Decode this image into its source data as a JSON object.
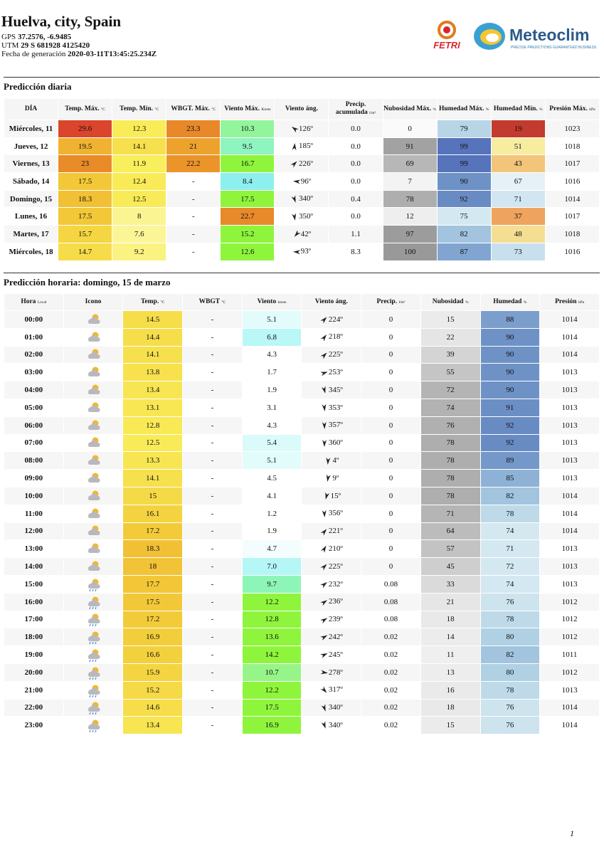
{
  "header": {
    "title": "Huelva, city, Spain",
    "gps_label": "GPS",
    "gps": "37.2576, -6.9485",
    "utm_label": "UTM",
    "utm": "29 S 681928 4125420",
    "date_label": "Fecha de generación",
    "date": "2020-03-11T13:45:25.234Z",
    "logo_left": "FETRI",
    "logo_right": "Meteoclim",
    "logo_tagline": "PRECISE PREDICTIONS GUARANTEED BUSINESS"
  },
  "daily": {
    "title": "Predicción diaria",
    "columns": [
      {
        "label": "DÍA"
      },
      {
        "label": "Temp. Máx.",
        "unit": "°C"
      },
      {
        "label": "Temp. Mín.",
        "unit": "°C"
      },
      {
        "label": "WBGT. Máx.",
        "unit": "°C"
      },
      {
        "label": "Viento Máx.",
        "unit": "Knots"
      },
      {
        "label": "Viento áng."
      },
      {
        "label": "Precip. acumulada",
        "unit": "l/m²"
      },
      {
        "label": "Nubosidad Máx.",
        "unit": "%"
      },
      {
        "label": "Humedad Máx.",
        "unit": "%"
      },
      {
        "label": "Humedad Mín.",
        "unit": "%"
      },
      {
        "label": "Presión Máx.",
        "unit": "hPa"
      }
    ],
    "rows": [
      [
        "Miércoles, 11",
        "29.6",
        "12.3",
        "23.3",
        "10.3",
        "126º",
        "0.0",
        "0",
        "79",
        "19",
        "1023"
      ],
      [
        "Jueves, 12",
        "19.5",
        "14.1",
        "21",
        "9.5",
        "185º",
        "0.0",
        "91",
        "99",
        "51",
        "1018"
      ],
      [
        "Viernes, 13",
        "23",
        "11.9",
        "22.2",
        "16.7",
        "226º",
        "0.0",
        "69",
        "99",
        "43",
        "1017"
      ],
      [
        "Sábado, 14",
        "17.5",
        "12.4",
        "-",
        "8.4",
        "96º",
        "0.0",
        "7",
        "90",
        "67",
        "1016"
      ],
      [
        "Domingo, 15",
        "18.3",
        "12.5",
        "-",
        "17.5",
        "340º",
        "0.4",
        "78",
        "92",
        "71",
        "1014"
      ],
      [
        "Lunes, 16",
        "17.5",
        "8",
        "-",
        "22.7",
        "350º",
        "0.0",
        "12",
        "75",
        "37",
        "1017"
      ],
      [
        "Martes, 17",
        "15.7",
        "7.6",
        "-",
        "15.2",
        "42º",
        "1.1",
        "97",
        "82",
        "48",
        "1018"
      ],
      [
        "Miércoles, 18",
        "14.7",
        "9.2",
        "-",
        "12.6",
        "93º",
        "8.3",
        "100",
        "87",
        "73",
        "1016"
      ]
    ]
  },
  "hourly": {
    "title": "Predicción horaria: domingo, 15 de marzo",
    "columns": [
      {
        "label": "Hora",
        "unit": "Local"
      },
      {
        "label": "Icono"
      },
      {
        "label": "Temp.",
        "unit": "°C"
      },
      {
        "label": "WBGT",
        "unit": "°C"
      },
      {
        "label": "Viento",
        "unit": "knots"
      },
      {
        "label": "Viento áng."
      },
      {
        "label": "Precip.",
        "unit": "l/m²"
      },
      {
        "label": "Nubosidad",
        "unit": "%"
      },
      {
        "label": "Humedad",
        "unit": "%"
      },
      {
        "label": "Presión",
        "unit": "hPa"
      }
    ],
    "rows": [
      [
        "00:00",
        "",
        "14.5",
        "-",
        "5.1",
        "224º",
        "0",
        "15",
        "88",
        "1014"
      ],
      [
        "01:00",
        "",
        "14.4",
        "-",
        "6.8",
        "218º",
        "0",
        "22",
        "90",
        "1014"
      ],
      [
        "02:00",
        "",
        "14.1",
        "-",
        "4.3",
        "225º",
        "0",
        "39",
        "90",
        "1014"
      ],
      [
        "03:00",
        "",
        "13.8",
        "-",
        "1.7",
        "253º",
        "0",
        "55",
        "90",
        "1013"
      ],
      [
        "04:00",
        "",
        "13.4",
        "-",
        "1.9",
        "345º",
        "0",
        "72",
        "90",
        "1013"
      ],
      [
        "05:00",
        "",
        "13.1",
        "-",
        "3.1",
        "353º",
        "0",
        "74",
        "91",
        "1013"
      ],
      [
        "06:00",
        "",
        "12.8",
        "-",
        "4.3",
        "357º",
        "0",
        "76",
        "92",
        "1013"
      ],
      [
        "07:00",
        "",
        "12.5",
        "-",
        "5.4",
        "360º",
        "0",
        "78",
        "92",
        "1013"
      ],
      [
        "08:00",
        "",
        "13.3",
        "-",
        "5.1",
        "4º",
        "0",
        "78",
        "89",
        "1013"
      ],
      [
        "09:00",
        "",
        "14.1",
        "-",
        "4.5",
        "9º",
        "0",
        "78",
        "85",
        "1013"
      ],
      [
        "10:00",
        "",
        "15",
        "-",
        "4.1",
        "15º",
        "0",
        "78",
        "82",
        "1014"
      ],
      [
        "11:00",
        "",
        "16.1",
        "-",
        "1.2",
        "356º",
        "0",
        "71",
        "78",
        "1014"
      ],
      [
        "12:00",
        "",
        "17.2",
        "-",
        "1.9",
        "221º",
        "0",
        "64",
        "74",
        "1014"
      ],
      [
        "13:00",
        "",
        "18.3",
        "-",
        "4.7",
        "210º",
        "0",
        "57",
        "71",
        "1013"
      ],
      [
        "14:00",
        "",
        "18",
        "-",
        "7.0",
        "225º",
        "0",
        "45",
        "72",
        "1013"
      ],
      [
        "15:00",
        "",
        "17.7",
        "-",
        "9.7",
        "232º",
        "0.08",
        "33",
        "74",
        "1013"
      ],
      [
        "16:00",
        "",
        "17.5",
        "-",
        "12.2",
        "236º",
        "0.08",
        "21",
        "76",
        "1012"
      ],
      [
        "17:00",
        "",
        "17.2",
        "-",
        "12.8",
        "239º",
        "0.08",
        "18",
        "78",
        "1012"
      ],
      [
        "18:00",
        "",
        "16.9",
        "-",
        "13.6",
        "242º",
        "0.02",
        "14",
        "80",
        "1012"
      ],
      [
        "19:00",
        "",
        "16.6",
        "-",
        "14.2",
        "245º",
        "0.02",
        "11",
        "82",
        "1011"
      ],
      [
        "20:00",
        "",
        "15.9",
        "-",
        "10.7",
        "278º",
        "0.02",
        "13",
        "80",
        "1012"
      ],
      [
        "21:00",
        "",
        "15.2",
        "-",
        "12.2",
        "317º",
        "0.02",
        "16",
        "78",
        "1013"
      ],
      [
        "22:00",
        "",
        "14.6",
        "-",
        "17.5",
        "340º",
        "0.02",
        "18",
        "76",
        "1014"
      ],
      [
        "23:00",
        "",
        "13.4",
        "-",
        "16.9",
        "340º",
        "0.02",
        "15",
        "76",
        "1014"
      ]
    ]
  },
  "page_number": "1"
}
